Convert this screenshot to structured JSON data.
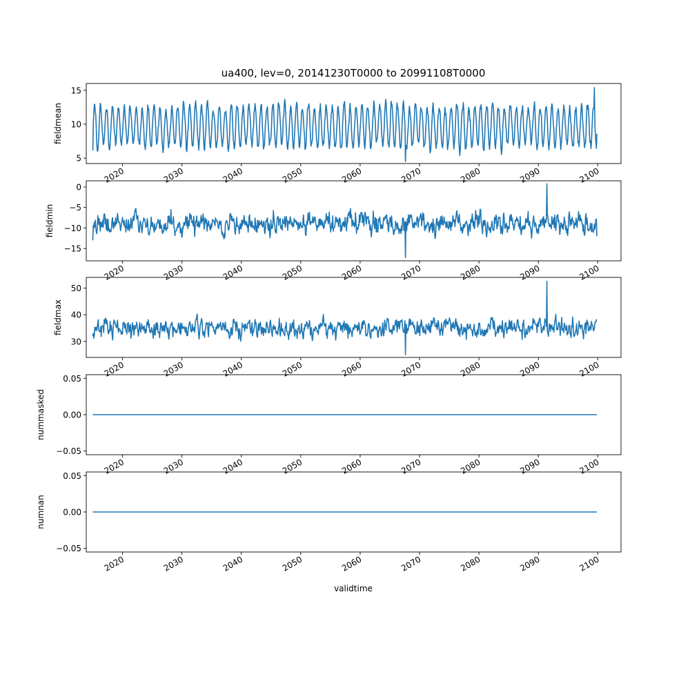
{
  "chart_data": {
    "type": "line",
    "title": "ua400, lev=0, 20141230T0000 to 20991108T0000",
    "xlabel": "validtime",
    "x_range": [
      "2014-12-30",
      "2099-11-08"
    ],
    "xlim": [
      "2013-11-22",
      "2103-12-01"
    ],
    "x_tick_labels": [
      "2020",
      "2030",
      "2040",
      "2050",
      "2060",
      "2070",
      "2080",
      "2090",
      "2100"
    ],
    "x_tick_years": [
      2020,
      2030,
      2040,
      2050,
      2060,
      2070,
      2080,
      2090,
      2100
    ],
    "series_color": "#1f77b4",
    "panels": [
      {
        "ylabel": "fieldmean",
        "ylim": [
          4.2,
          16.0
        ],
        "y_ticks": [
          5,
          10,
          15
        ],
        "y_tick_labels": [
          "5",
          "10",
          "15"
        ],
        "kind": "seasonal",
        "baseline": 9.7,
        "amplitude": 3.0,
        "noise": 0.8,
        "first": 6.1,
        "last": 8.6,
        "min": 4.5,
        "max": 15.4,
        "grid": false
      },
      {
        "ylabel": "fieldmin",
        "ylim": [
          -18.0,
          1.5
        ],
        "y_ticks": [
          -15,
          -10,
          -5,
          0
        ],
        "y_tick_labels": [
          "−15",
          "−10",
          "−5",
          "0"
        ],
        "kind": "noisy",
        "baseline": -9.0,
        "amplitude": 1.5,
        "noise": 2.2,
        "first": -13.0,
        "last": -12.0,
        "min": -17.2,
        "max": 0.8,
        "grid": false
      },
      {
        "ylabel": "fieldmax",
        "ylim": [
          24.0,
          54.0
        ],
        "y_ticks": [
          30,
          40,
          50
        ],
        "y_tick_labels": [
          "30",
          "40",
          "50"
        ],
        "kind": "noisy",
        "baseline": 35.0,
        "amplitude": 1.5,
        "noise": 3.0,
        "first": 32.0,
        "last": 38.0,
        "min": 25.0,
        "max": 52.5,
        "grid": false
      },
      {
        "ylabel": "nummasked",
        "ylim": [
          -0.055,
          0.055
        ],
        "y_ticks": [
          -0.05,
          0,
          0.05
        ],
        "y_tick_labels": [
          "−0.05",
          "0.00",
          "0.05"
        ],
        "kind": "constant",
        "value": 0.0,
        "grid": false
      },
      {
        "ylabel": "numnan",
        "ylim": [
          -0.055,
          0.055
        ],
        "y_ticks": [
          -0.05,
          0,
          0.05
        ],
        "y_tick_labels": [
          "−0.05",
          "0.00",
          "0.05"
        ],
        "kind": "constant",
        "value": 0.0,
        "grid": false
      }
    ]
  }
}
